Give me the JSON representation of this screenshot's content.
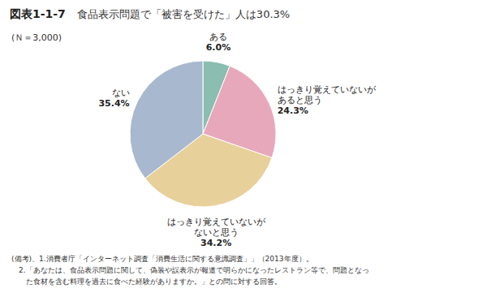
{
  "chart_data": {
    "type": "pie",
    "title": "図表1-1-7",
    "subtitle": "食品表示問題で「被害を受けた」人は30.3%",
    "categories": [
      "ある",
      "はっきり覚えていないが\nあると思う",
      "はっきり覚えていないが\nないと思う",
      "ない"
    ],
    "values": [
      6.0,
      24.3,
      34.2,
      35.4
    ],
    "value_labels": [
      "6.0%",
      "24.3%",
      "34.2%",
      "35.4%"
    ],
    "data_labels": true,
    "colors": [
      "#8bbdb0",
      "#e8a8bc",
      "#e8d09a",
      "#a8b8ce"
    ],
    "annotations": [
      "(Ｎ＝3,000)",
      "(備考)、1.消費者庁「インターネット調査「消費生活に関する意識調査」」（2013年度）。",
      "　2.「あなたは、食品表示問題に関して、偽装や誤表示が報道で明らかになったレストラン等で、問題となっ",
      "　　た食材を含む料理を過去に食べた経験がありますか。」との問に対する回答。"
    ]
  }
}
